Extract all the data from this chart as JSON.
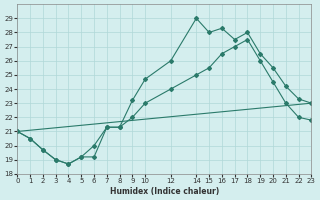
{
  "xlabel": "Humidex (Indice chaleur)",
  "ylabel": "",
  "bg_color": "#d4eeee",
  "grid_color": "#b0d8d8",
  "line_color": "#2a7a6a",
  "line1_x": [
    0,
    1,
    2,
    3,
    4,
    5,
    6,
    7,
    8,
    9,
    10,
    12,
    14,
    15,
    16,
    17,
    18,
    19,
    20,
    21,
    22,
    23
  ],
  "line1_y": [
    21.0,
    20.5,
    19.7,
    19.0,
    18.7,
    19.2,
    19.2,
    21.3,
    21.3,
    23.2,
    24.7,
    26.0,
    29.0,
    28.0,
    28.3,
    27.5,
    28.0,
    26.5,
    25.5,
    24.2,
    23.3,
    23.0
  ],
  "line2_x": [
    0,
    1,
    2,
    3,
    4,
    5,
    6,
    7,
    8,
    9,
    10,
    12,
    14,
    15,
    16,
    17,
    18,
    19,
    20,
    21,
    22,
    23
  ],
  "line2_y": [
    21.0,
    20.5,
    19.7,
    19.0,
    18.7,
    19.2,
    20.0,
    21.3,
    21.3,
    22.0,
    23.0,
    24.0,
    25.0,
    25.5,
    26.5,
    27.0,
    27.5,
    26.0,
    24.5,
    23.0,
    22.0,
    21.8
  ],
  "line3_x": [
    0,
    23
  ],
  "line3_y": [
    21.0,
    23.0
  ],
  "ylim": [
    18,
    30
  ],
  "xlim": [
    0,
    23
  ],
  "yticks": [
    18,
    19,
    20,
    21,
    22,
    23,
    24,
    25,
    26,
    27,
    28,
    29
  ],
  "xticks": [
    0,
    1,
    2,
    3,
    4,
    5,
    6,
    7,
    8,
    9,
    10,
    12,
    14,
    15,
    16,
    17,
    18,
    19,
    20,
    21,
    22,
    23
  ]
}
